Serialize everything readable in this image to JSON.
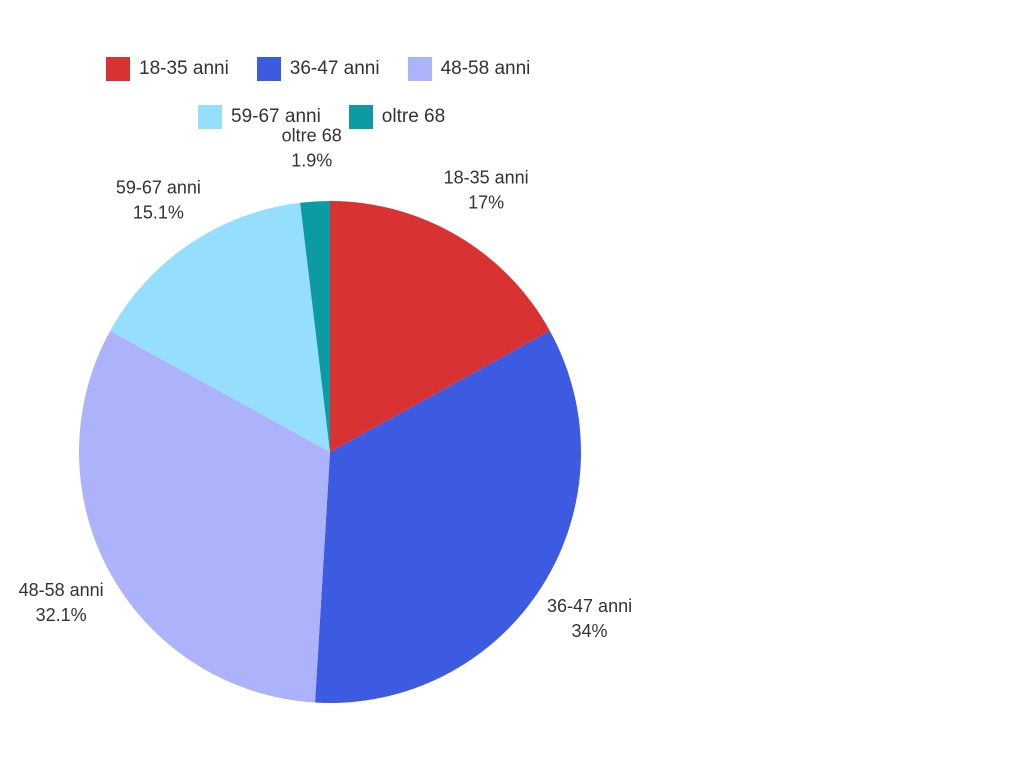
{
  "chart_data": {
    "type": "pie",
    "categories": [
      "18-35 anni",
      "36-47 anni",
      "48-58 anni",
      "59-67 anni",
      "oltre 68"
    ],
    "values": [
      17,
      34,
      32.1,
      15.1,
      1.9
    ],
    "value_labels": [
      "17%",
      "34%",
      "32.1%",
      "15.1%",
      "1.9%"
    ],
    "colors": [
      "#d93232",
      "#3c5be0",
      "#adb3fb",
      "#95dffc",
      "#0c9aa3"
    ],
    "title": "",
    "legend_position": "top"
  },
  "legend": {
    "items": [
      {
        "label": "18-35 anni",
        "color": "#d93232"
      },
      {
        "label": "36-47 anni",
        "color": "#3c5be0"
      },
      {
        "label": "48-58 anni",
        "color": "#adb3fb"
      },
      {
        "label": "59-67 anni",
        "color": "#95dffc"
      },
      {
        "label": "oltre 68",
        "color": "#0c9aa3"
      }
    ]
  }
}
